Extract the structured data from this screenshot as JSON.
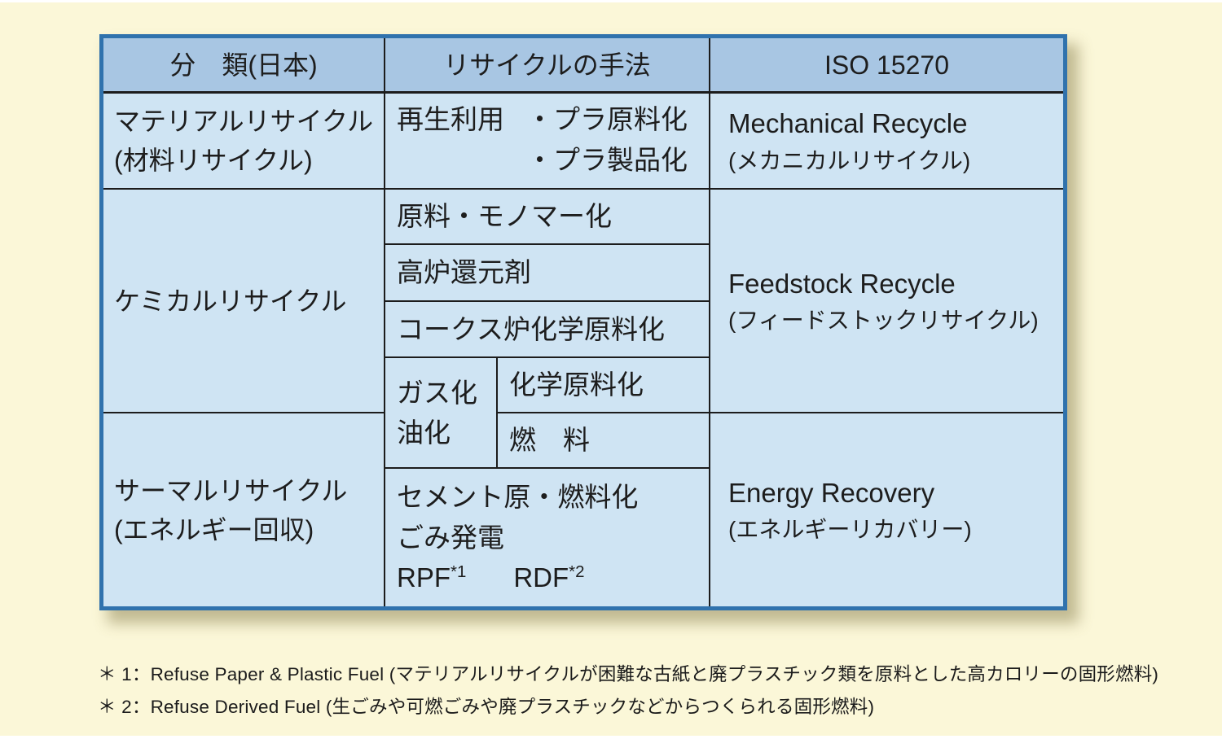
{
  "colors": {
    "page_background": "#FBF7D8",
    "table_border": "#3072AD",
    "header_background": "#A8C6E3",
    "cell_background": "#CFE4F3",
    "grid_line": "#1C1C1C",
    "text": "#1D1D1D"
  },
  "table": {
    "headers": {
      "classification": "分　類(日本)",
      "method": "リサイクルの手法",
      "iso": "ISO 15270"
    },
    "material": {
      "classification_line1": "マテリアルリサイクル",
      "classification_line2": "(材料リサイクル)",
      "method_prefix": "再生利用",
      "method_bullet1": "・プラ原料化",
      "method_bullet2": "・プラ製品化",
      "iso_line1": "Mechanical Recycle",
      "iso_line2": "(メカニカルリサイクル)"
    },
    "chemical": {
      "classification": "ケミカルリサイクル",
      "method_row1": "原料・モノマー化",
      "method_row2": "高炉還元剤",
      "method_row3": "コークス炉化学原料化",
      "gasification_line1": "ガス化",
      "gasification_line2": "油化",
      "gasification_sub1": "化学原料化",
      "gasification_sub2": "燃　料",
      "iso_line1": "Feedstock Recycle",
      "iso_line2": "(フィードストックリサイクル)"
    },
    "thermal": {
      "classification_line1": "サーマルリサイクル",
      "classification_line2": "(エネルギー回収)",
      "method_line1": "セメント原・燃料化",
      "method_line2": "ごみ発電",
      "rpf_label": "RPF",
      "rpf_sup": "*1",
      "rdf_label": "RDF",
      "rdf_sup": "*2",
      "iso_line1": "Energy Recovery",
      "iso_line2": "(エネルギーリカバリー)"
    }
  },
  "footnotes": [
    "＊ 1：Refuse Paper & Plastic Fuel (マテリアルリサイクルが困難な古紙と廃プラスチック類を原料とした高カロリーの固形燃料)",
    "＊ 2：Refuse Derived Fuel (生ごみや可燃ごみや廃プラスチックなどからつくられる固形燃料)"
  ]
}
